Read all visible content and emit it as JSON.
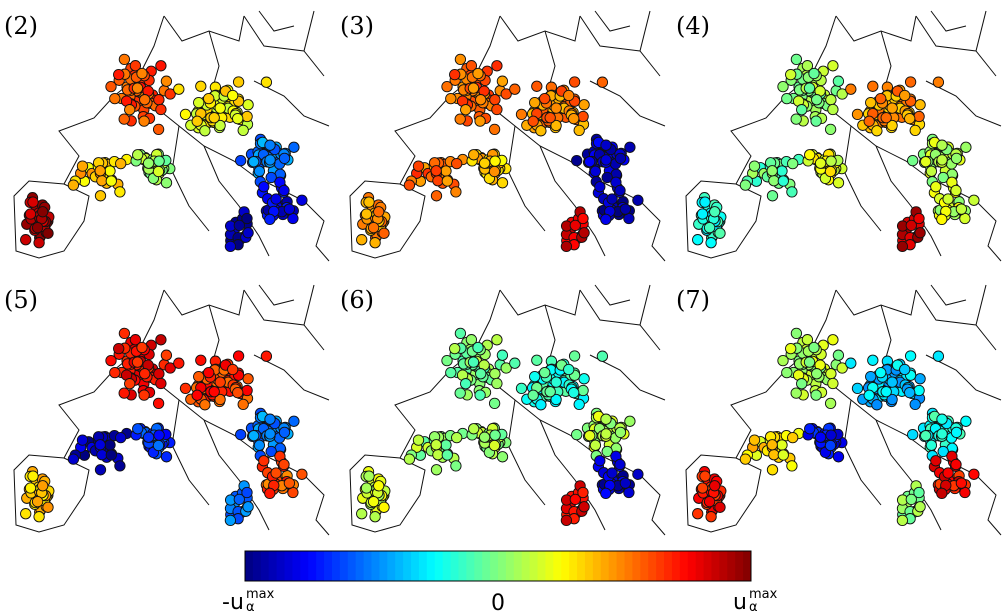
{
  "chart_data": {
    "type": "scatter",
    "panels": [
      {
        "label": "(2)",
        "pattern": [
          0.9,
          0.35,
          0.6,
          0.25,
          0.05,
          -0.5,
          -0.8,
          -0.95
        ]
      },
      {
        "label": "(3)",
        "pattern": [
          0.45,
          0.55,
          0.55,
          0.5,
          0.35,
          -0.85,
          -0.9,
          0.8
        ]
      },
      {
        "label": "(4)",
        "pattern": [
          -0.2,
          -0.05,
          0.05,
          0.45,
          0.2,
          0.1,
          0.15,
          0.85
        ]
      },
      {
        "label": "(5)",
        "pattern": [
          0.35,
          -0.9,
          0.75,
          0.65,
          -0.65,
          -0.5,
          0.6,
          -0.55
        ]
      },
      {
        "label": "(6)",
        "pattern": [
          0.15,
          0.05,
          0.0,
          -0.15,
          0.05,
          0.1,
          -0.85,
          0.75
        ]
      },
      {
        "label": "(7)",
        "pattern": [
          0.7,
          0.3,
          0.1,
          -0.35,
          -0.75,
          -0.2,
          0.75,
          0.0
        ]
      }
    ],
    "colorbar": {
      "colormap": "jet",
      "min_label": "-u",
      "min_superscript": "max",
      "min_subscript": "α",
      "mid_label": "0",
      "max_label": "u",
      "max_superscript": "max",
      "max_subscript": "α",
      "range": [
        -1,
        1
      ]
    }
  }
}
